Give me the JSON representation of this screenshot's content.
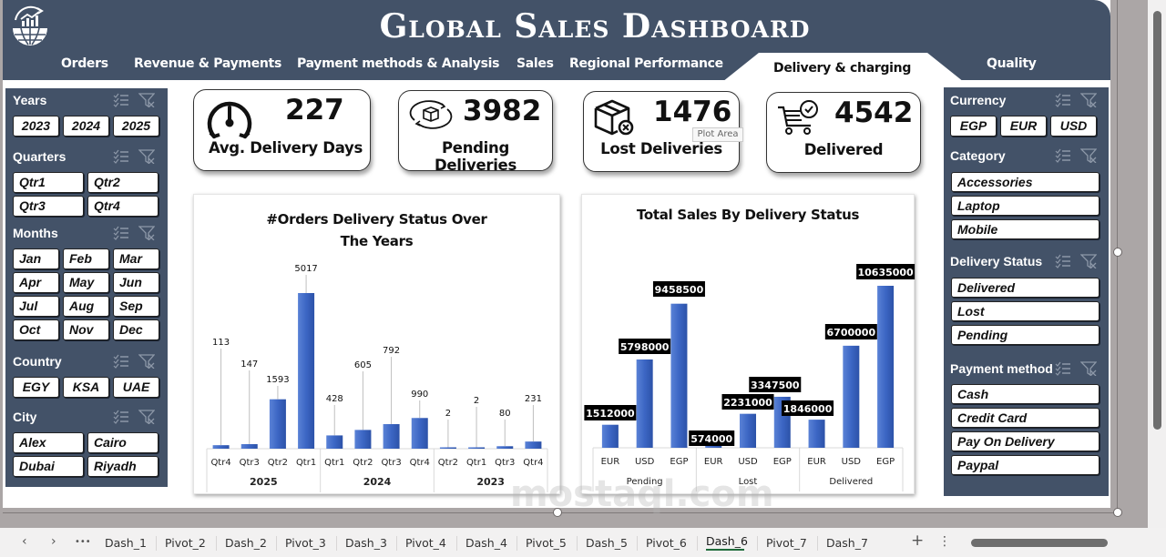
{
  "header": {
    "title": "Global Sales Dashboard",
    "logo_icon": "globe-chart-icon",
    "nav": [
      {
        "label": "Orders",
        "active": false
      },
      {
        "label": "Revenue & Payments",
        "active": false
      },
      {
        "label": "Payment methods & Analysis",
        "active": false
      },
      {
        "label": "Sales",
        "active": false
      },
      {
        "label": "Regional Performance",
        "active": false
      },
      {
        "label": "Delivery & charging",
        "active": true
      },
      {
        "label": "Quality",
        "active": false
      }
    ]
  },
  "left_slicers": {
    "years": {
      "title": "Years",
      "items": [
        "2023",
        "2024",
        "2025"
      ]
    },
    "quarters": {
      "title": "Quarters",
      "items": [
        "Qtr1",
        "Qtr2",
        "Qtr3",
        "Qtr4"
      ]
    },
    "months": {
      "title": "Months",
      "items": [
        "Jan",
        "Feb",
        "Mar",
        "Apr",
        "May",
        "Jun",
        "Jul",
        "Aug",
        "Sep",
        "Oct",
        "Nov",
        "Dec"
      ]
    },
    "country": {
      "title": "Country",
      "items": [
        "EGY",
        "KSA",
        "UAE"
      ]
    },
    "city": {
      "title": "City",
      "items": [
        "Alex",
        "Cairo",
        "Dubai",
        "Riyadh"
      ]
    }
  },
  "right_slicers": {
    "currency": {
      "title": "Currency",
      "items": [
        "EGP",
        "EUR",
        "USD"
      ]
    },
    "category": {
      "title": "Category",
      "items": [
        "Accessories",
        "Laptop",
        "Mobile"
      ]
    },
    "delivery_status": {
      "title": "Delivery Status",
      "items": [
        "Delivered",
        "Lost",
        "Pending"
      ]
    },
    "payment_method": {
      "title": "Payment method",
      "items": [
        "Cash",
        "Credit Card",
        "Pay On Delivery",
        "Paypal"
      ]
    }
  },
  "kpis": [
    {
      "value": "227",
      "label": "Avg. Delivery Days",
      "icon": "speedometer-icon"
    },
    {
      "value": "3982",
      "label": "Pending Deliveries",
      "icon": "box-cycle-icon"
    },
    {
      "value": "1476",
      "label": "Lost Deliveries",
      "icon": "box-x-icon"
    },
    {
      "value": "4542",
      "label": "Delivered",
      "icon": "cart-check-icon"
    }
  ],
  "tooltip": "Plot Area",
  "colors": {
    "header_bg": "#435268",
    "bar": "#3c66c4",
    "label_bg": "#000000",
    "active_tab_underline": "#1e6b3a"
  },
  "chart_data": [
    {
      "type": "bar",
      "title": "#Orders Delivery Status Over The Years",
      "title_lines": [
        "#Orders Delivery Status Over",
        "The Years"
      ],
      "groups": [
        {
          "name": "2025",
          "categories": [
            "Qtr4",
            "Qtr3",
            "Qtr2",
            "Qtr1"
          ],
          "values": [
            113,
            147,
            1593,
            5017
          ]
        },
        {
          "name": "2024",
          "categories": [
            "Qtr1",
            "Qtr2",
            "Qtr3",
            "Qtr4"
          ],
          "values": [
            428,
            605,
            792,
            990
          ]
        },
        {
          "name": "2023",
          "categories": [
            "Qtr2",
            "Qtr1",
            "Qtr3",
            "Qtr4"
          ],
          "values": [
            2,
            2,
            80,
            231
          ]
        }
      ],
      "ylim": [
        0,
        5017
      ],
      "grid": false,
      "legend": "none"
    },
    {
      "type": "bar",
      "title": "Total Sales By Delivery Status",
      "groups": [
        {
          "name": "Pending",
          "categories": [
            "EUR",
            "USD",
            "EGP"
          ],
          "values": [
            1512000,
            5798000,
            9458500
          ]
        },
        {
          "name": "Lost",
          "categories": [
            "EUR",
            "USD",
            "EGP"
          ],
          "values": [
            574000,
            2231000,
            3347500
          ]
        },
        {
          "name": "Delivered",
          "categories": [
            "EUR",
            "USD",
            "EGP"
          ],
          "values": [
            1846000,
            6700000,
            10635000
          ]
        }
      ],
      "ylim": [
        0,
        10635000
      ],
      "grid": false,
      "legend": "none"
    }
  ],
  "sheet_tabs": {
    "tabs": [
      "Dash_1",
      "Pivot_2",
      "Dash_2",
      "Pivot_3",
      "Dash_3",
      "Pivot_4",
      "Dash_4",
      "Pivot_5",
      "Dash_5",
      "Pivot_6",
      "Dash_6",
      "Pivot_7",
      "Dash_7"
    ],
    "active": "Dash_6",
    "prev_label": "‹",
    "next_label": "›",
    "more_label": "•••",
    "add_label": "+",
    "options_label": "⋮"
  },
  "watermark": "mostaql.com"
}
